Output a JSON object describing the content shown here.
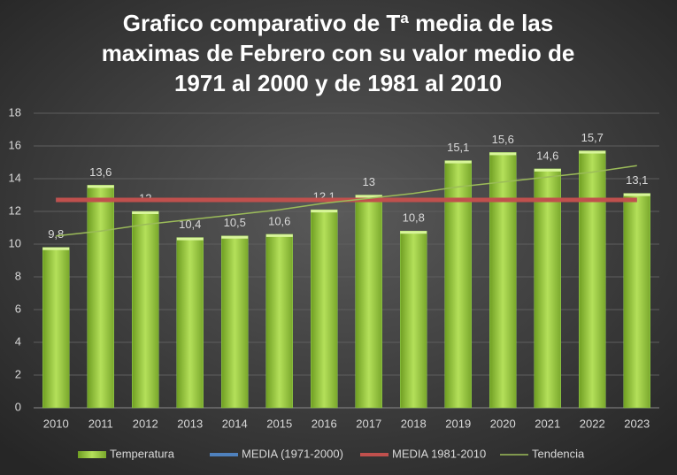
{
  "chart_data": {
    "type": "bar",
    "title": [
      "Grafico comparativo de Tª media de las",
      "maximas de Febrero con su valor medio de",
      "1971 al 2000 y de 1981 al 2010"
    ],
    "categories": [
      "2010",
      "2011",
      "2012",
      "2013",
      "2014",
      "2015",
      "2016",
      "2017",
      "2018",
      "2019",
      "2020",
      "2021",
      "2022",
      "2023"
    ],
    "series": [
      {
        "name": "Temperatura",
        "type": "bar",
        "color": "#92d050",
        "values": [
          9.8,
          13.6,
          12,
          10.4,
          10.5,
          10.6,
          12.1,
          13,
          10.8,
          15.1,
          15.6,
          14.6,
          15.7,
          13.1
        ],
        "value_labels": [
          "9,8",
          "13,6",
          "12",
          "10,4",
          "10,5",
          "10,6",
          "12,1",
          "13",
          "10,8",
          "15,1",
          "15,6",
          "14,6",
          "15,7",
          "13,1"
        ]
      },
      {
        "name": "MEDIA (1971-2000)",
        "type": "line",
        "color": "#4f81bd",
        "values": [
          12.7,
          12.7,
          12.7,
          12.7,
          12.7,
          12.7,
          12.7,
          12.7,
          12.7,
          12.7,
          12.7,
          12.7,
          12.7,
          12.7
        ]
      },
      {
        "name": "MEDIA 1981-2010",
        "type": "line",
        "color": "#c0504d",
        "values": [
          12.7,
          12.7,
          12.7,
          12.7,
          12.7,
          12.7,
          12.7,
          12.7,
          12.7,
          12.7,
          12.7,
          12.7,
          12.7,
          12.7
        ]
      },
      {
        "name": "Tendencia",
        "type": "trendline",
        "color": "#9bbb59",
        "values": [
          10.5,
          10.8,
          11.2,
          11.5,
          11.8,
          12.1,
          12.5,
          12.8,
          13.1,
          13.5,
          13.8,
          14.1,
          14.4,
          14.8
        ]
      }
    ],
    "ylim": [
      0,
      18
    ],
    "yticks": [
      0,
      2,
      4,
      6,
      8,
      10,
      12,
      14,
      16,
      18
    ],
    "grid": true
  }
}
